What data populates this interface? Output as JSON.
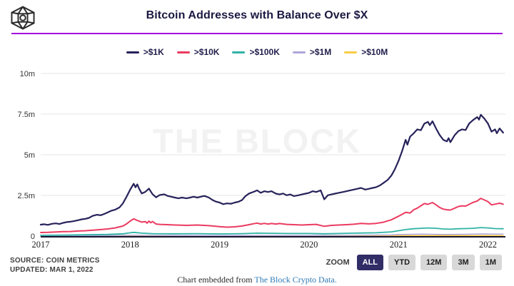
{
  "header": {
    "title": "Bitcoin Addresses with Balance Over $X",
    "logo_icon": "the-block-cube-logo",
    "divider_color": "#A303DB"
  },
  "watermark": "THE BLOCK",
  "legend": {
    "items": [
      {
        "label": ">$1K",
        "color": "#26225A"
      },
      {
        "label": ">$10K",
        "color": "#EB3B60"
      },
      {
        "label": ">$100K",
        "color": "#2FB3A6"
      },
      {
        "label": ">$1M",
        "color": "#B0A6DC"
      },
      {
        "label": ">$10M",
        "color": "#F9CC45"
      }
    ]
  },
  "source": {
    "line1": "SOURCE: COIN METRICS",
    "line2": "UPDATED: MAR 1, 2022"
  },
  "toolbar": {
    "zoom_label": "ZOOM",
    "buttons": [
      {
        "label": "ALL",
        "active": true
      },
      {
        "label": "YTD",
        "active": false
      },
      {
        "label": "12M",
        "active": false
      },
      {
        "label": "3M",
        "active": false
      },
      {
        "label": "1M",
        "active": false
      }
    ]
  },
  "footer": {
    "prefix": "Chart embedded from ",
    "link_text": "The Block Crypto Data."
  },
  "chart_data": {
    "type": "line",
    "title": "Bitcoin Addresses with Balance Over $X",
    "xlabel": "",
    "ylabel": "",
    "unit": "millions of addresses",
    "grid": "horizontal",
    "legend_position": "top-center",
    "xlim": [
      2017,
      2022.18
    ],
    "ylim": [
      0,
      10.5
    ],
    "x_ticks": [
      "2017",
      "2018",
      "2019",
      "2020",
      "2021",
      "2022"
    ],
    "x_tick_values": [
      2017,
      2018,
      2019,
      2020,
      2021,
      2022
    ],
    "y_ticks": [
      "0",
      "2.5m",
      "5m",
      "7.5m",
      "10m"
    ],
    "y_tick_values": [
      0,
      2.5,
      5,
      7.5,
      10
    ],
    "colors": {
      "grid": "#e6e6e6",
      "axis": "#16142e"
    },
    "series": [
      {
        "name": ">$1K",
        "color": "#26225A",
        "width": 2.2,
        "points": [
          [
            2017.0,
            0.7
          ],
          [
            2017.04,
            0.73
          ],
          [
            2017.08,
            0.69
          ],
          [
            2017.13,
            0.76
          ],
          [
            2017.17,
            0.78
          ],
          [
            2017.21,
            0.74
          ],
          [
            2017.25,
            0.81
          ],
          [
            2017.29,
            0.86
          ],
          [
            2017.33,
            0.88
          ],
          [
            2017.38,
            0.93
          ],
          [
            2017.42,
            0.98
          ],
          [
            2017.46,
            1.03
          ],
          [
            2017.5,
            1.06
          ],
          [
            2017.54,
            1.12
          ],
          [
            2017.58,
            1.24
          ],
          [
            2017.63,
            1.31
          ],
          [
            2017.67,
            1.28
          ],
          [
            2017.71,
            1.36
          ],
          [
            2017.75,
            1.46
          ],
          [
            2017.79,
            1.56
          ],
          [
            2017.83,
            1.62
          ],
          [
            2017.88,
            1.76
          ],
          [
            2017.92,
            2.02
          ],
          [
            2017.96,
            2.42
          ],
          [
            2018.0,
            2.85
          ],
          [
            2018.04,
            3.22
          ],
          [
            2018.06,
            3.0
          ],
          [
            2018.08,
            3.18
          ],
          [
            2018.1,
            2.92
          ],
          [
            2018.13,
            2.62
          ],
          [
            2018.17,
            2.72
          ],
          [
            2018.21,
            2.92
          ],
          [
            2018.23,
            2.75
          ],
          [
            2018.25,
            2.58
          ],
          [
            2018.29,
            2.38
          ],
          [
            2018.33,
            2.52
          ],
          [
            2018.38,
            2.57
          ],
          [
            2018.42,
            2.47
          ],
          [
            2018.46,
            2.42
          ],
          [
            2018.5,
            2.37
          ],
          [
            2018.54,
            2.32
          ],
          [
            2018.58,
            2.37
          ],
          [
            2018.63,
            2.32
          ],
          [
            2018.67,
            2.37
          ],
          [
            2018.71,
            2.42
          ],
          [
            2018.75,
            2.37
          ],
          [
            2018.79,
            2.42
          ],
          [
            2018.83,
            2.47
          ],
          [
            2018.88,
            2.37
          ],
          [
            2018.92,
            2.22
          ],
          [
            2018.96,
            2.12
          ],
          [
            2019.0,
            2.06
          ],
          [
            2019.04,
            1.96
          ],
          [
            2019.08,
            2.01
          ],
          [
            2019.13,
            1.99
          ],
          [
            2019.17,
            2.06
          ],
          [
            2019.21,
            2.11
          ],
          [
            2019.25,
            2.21
          ],
          [
            2019.29,
            2.46
          ],
          [
            2019.33,
            2.62
          ],
          [
            2019.38,
            2.72
          ],
          [
            2019.42,
            2.81
          ],
          [
            2019.46,
            2.66
          ],
          [
            2019.5,
            2.76
          ],
          [
            2019.54,
            2.71
          ],
          [
            2019.58,
            2.76
          ],
          [
            2019.63,
            2.61
          ],
          [
            2019.67,
            2.56
          ],
          [
            2019.71,
            2.62
          ],
          [
            2019.75,
            2.51
          ],
          [
            2019.79,
            2.56
          ],
          [
            2019.83,
            2.46
          ],
          [
            2019.88,
            2.51
          ],
          [
            2019.92,
            2.56
          ],
          [
            2019.96,
            2.61
          ],
          [
            2020.0,
            2.66
          ],
          [
            2020.04,
            2.76
          ],
          [
            2020.08,
            2.71
          ],
          [
            2020.13,
            2.81
          ],
          [
            2020.17,
            2.26
          ],
          [
            2020.21,
            2.51
          ],
          [
            2020.25,
            2.56
          ],
          [
            2020.29,
            2.61
          ],
          [
            2020.33,
            2.66
          ],
          [
            2020.38,
            2.71
          ],
          [
            2020.42,
            2.76
          ],
          [
            2020.46,
            2.81
          ],
          [
            2020.5,
            2.86
          ],
          [
            2020.54,
            2.91
          ],
          [
            2020.58,
            2.96
          ],
          [
            2020.63,
            2.86
          ],
          [
            2020.67,
            2.91
          ],
          [
            2020.71,
            2.96
          ],
          [
            2020.75,
            3.01
          ],
          [
            2020.79,
            3.11
          ],
          [
            2020.83,
            3.26
          ],
          [
            2020.88,
            3.46
          ],
          [
            2020.92,
            3.72
          ],
          [
            2020.96,
            4.12
          ],
          [
            2021.0,
            4.62
          ],
          [
            2021.04,
            5.22
          ],
          [
            2021.08,
            5.92
          ],
          [
            2021.1,
            5.62
          ],
          [
            2021.13,
            6.12
          ],
          [
            2021.17,
            6.32
          ],
          [
            2021.21,
            6.56
          ],
          [
            2021.25,
            6.51
          ],
          [
            2021.29,
            6.92
          ],
          [
            2021.33,
            7.02
          ],
          [
            2021.35,
            6.82
          ],
          [
            2021.38,
            7.06
          ],
          [
            2021.42,
            6.62
          ],
          [
            2021.46,
            6.22
          ],
          [
            2021.5,
            5.92
          ],
          [
            2021.54,
            5.82
          ],
          [
            2021.56,
            6.02
          ],
          [
            2021.58,
            5.77
          ],
          [
            2021.63,
            6.22
          ],
          [
            2021.67,
            6.46
          ],
          [
            2021.71,
            6.56
          ],
          [
            2021.75,
            6.52
          ],
          [
            2021.79,
            6.92
          ],
          [
            2021.83,
            7.12
          ],
          [
            2021.88,
            7.32
          ],
          [
            2021.9,
            7.16
          ],
          [
            2021.92,
            7.46
          ],
          [
            2021.96,
            7.22
          ],
          [
            2022.0,
            6.92
          ],
          [
            2022.04,
            6.42
          ],
          [
            2022.08,
            6.56
          ],
          [
            2022.1,
            6.32
          ],
          [
            2022.13,
            6.62
          ],
          [
            2022.17,
            6.36
          ]
        ]
      },
      {
        "name": ">$10K",
        "color": "#EB3B60",
        "width": 2,
        "points": [
          [
            2017.0,
            0.22
          ],
          [
            2017.08,
            0.23
          ],
          [
            2017.17,
            0.25
          ],
          [
            2017.25,
            0.27
          ],
          [
            2017.33,
            0.28
          ],
          [
            2017.42,
            0.31
          ],
          [
            2017.5,
            0.33
          ],
          [
            2017.58,
            0.36
          ],
          [
            2017.67,
            0.4
          ],
          [
            2017.75,
            0.44
          ],
          [
            2017.83,
            0.5
          ],
          [
            2017.92,
            0.62
          ],
          [
            2017.96,
            0.75
          ],
          [
            2018.0,
            0.92
          ],
          [
            2018.04,
            1.06
          ],
          [
            2018.08,
            0.96
          ],
          [
            2018.13,
            0.86
          ],
          [
            2018.17,
            0.89
          ],
          [
            2018.19,
            0.8
          ],
          [
            2018.21,
            0.92
          ],
          [
            2018.23,
            0.82
          ],
          [
            2018.25,
            0.9
          ],
          [
            2018.29,
            0.74
          ],
          [
            2018.33,
            0.72
          ],
          [
            2018.42,
            0.7
          ],
          [
            2018.5,
            0.68
          ],
          [
            2018.63,
            0.66
          ],
          [
            2018.75,
            0.68
          ],
          [
            2018.88,
            0.64
          ],
          [
            2019.0,
            0.58
          ],
          [
            2019.08,
            0.55
          ],
          [
            2019.17,
            0.57
          ],
          [
            2019.25,
            0.62
          ],
          [
            2019.33,
            0.7
          ],
          [
            2019.38,
            0.76
          ],
          [
            2019.42,
            0.8
          ],
          [
            2019.46,
            0.74
          ],
          [
            2019.5,
            0.78
          ],
          [
            2019.54,
            0.74
          ],
          [
            2019.58,
            0.77
          ],
          [
            2019.63,
            0.74
          ],
          [
            2019.67,
            0.77
          ],
          [
            2019.75,
            0.72
          ],
          [
            2019.83,
            0.7
          ],
          [
            2019.92,
            0.68
          ],
          [
            2020.0,
            0.7
          ],
          [
            2020.08,
            0.72
          ],
          [
            2020.17,
            0.6
          ],
          [
            2020.25,
            0.66
          ],
          [
            2020.33,
            0.68
          ],
          [
            2020.42,
            0.7
          ],
          [
            2020.5,
            0.73
          ],
          [
            2020.58,
            0.78
          ],
          [
            2020.67,
            0.75
          ],
          [
            2020.75,
            0.78
          ],
          [
            2020.83,
            0.85
          ],
          [
            2020.92,
            1.0
          ],
          [
            2021.0,
            1.22
          ],
          [
            2021.08,
            1.46
          ],
          [
            2021.13,
            1.42
          ],
          [
            2021.17,
            1.62
          ],
          [
            2021.21,
            1.72
          ],
          [
            2021.25,
            1.86
          ],
          [
            2021.29,
            2.0
          ],
          [
            2021.33,
            1.95
          ],
          [
            2021.38,
            2.06
          ],
          [
            2021.42,
            1.92
          ],
          [
            2021.46,
            1.76
          ],
          [
            2021.5,
            1.66
          ],
          [
            2021.54,
            1.62
          ],
          [
            2021.58,
            1.6
          ],
          [
            2021.63,
            1.72
          ],
          [
            2021.67,
            1.82
          ],
          [
            2021.71,
            1.86
          ],
          [
            2021.75,
            1.84
          ],
          [
            2021.79,
            1.95
          ],
          [
            2021.83,
            2.06
          ],
          [
            2021.88,
            2.16
          ],
          [
            2021.92,
            2.32
          ],
          [
            2021.96,
            2.22
          ],
          [
            2022.0,
            2.12
          ],
          [
            2022.04,
            1.92
          ],
          [
            2022.08,
            1.96
          ],
          [
            2022.13,
            2.02
          ],
          [
            2022.17,
            1.96
          ]
        ]
      },
      {
        "name": ">$100K",
        "color": "#2FB3A6",
        "width": 1.8,
        "points": [
          [
            2017.0,
            0.05
          ],
          [
            2017.25,
            0.06
          ],
          [
            2017.5,
            0.08
          ],
          [
            2017.75,
            0.1
          ],
          [
            2017.92,
            0.14
          ],
          [
            2018.0,
            0.2
          ],
          [
            2018.04,
            0.23
          ],
          [
            2018.13,
            0.18
          ],
          [
            2018.25,
            0.15
          ],
          [
            2018.5,
            0.14
          ],
          [
            2018.75,
            0.15
          ],
          [
            2019.0,
            0.13
          ],
          [
            2019.25,
            0.15
          ],
          [
            2019.42,
            0.18
          ],
          [
            2019.58,
            0.17
          ],
          [
            2019.75,
            0.16
          ],
          [
            2020.0,
            0.16
          ],
          [
            2020.17,
            0.14
          ],
          [
            2020.33,
            0.16
          ],
          [
            2020.5,
            0.18
          ],
          [
            2020.75,
            0.2
          ],
          [
            2020.92,
            0.26
          ],
          [
            2021.0,
            0.33
          ],
          [
            2021.08,
            0.4
          ],
          [
            2021.17,
            0.45
          ],
          [
            2021.25,
            0.48
          ],
          [
            2021.33,
            0.5
          ],
          [
            2021.42,
            0.48
          ],
          [
            2021.5,
            0.44
          ],
          [
            2021.58,
            0.42
          ],
          [
            2021.67,
            0.45
          ],
          [
            2021.75,
            0.46
          ],
          [
            2021.83,
            0.48
          ],
          [
            2021.92,
            0.52
          ],
          [
            2022.0,
            0.5
          ],
          [
            2022.08,
            0.46
          ],
          [
            2022.17,
            0.45
          ]
        ]
      },
      {
        "name": ">$1M",
        "color": "#B0A6DC",
        "width": 1.5,
        "points": [
          [
            2017.0,
            0.01
          ],
          [
            2017.5,
            0.02
          ],
          [
            2018.0,
            0.05
          ],
          [
            2018.5,
            0.04
          ],
          [
            2019.0,
            0.03
          ],
          [
            2019.5,
            0.04
          ],
          [
            2020.0,
            0.04
          ],
          [
            2020.5,
            0.05
          ],
          [
            2020.92,
            0.07
          ],
          [
            2021.0,
            0.09
          ],
          [
            2021.25,
            0.12
          ],
          [
            2021.5,
            0.1
          ],
          [
            2021.75,
            0.11
          ],
          [
            2021.92,
            0.13
          ],
          [
            2022.17,
            0.12
          ]
        ]
      },
      {
        "name": ">$10M",
        "color": "#F9CC45",
        "width": 1.5,
        "points": [
          [
            2017.0,
            0.005
          ],
          [
            2018.0,
            0.015
          ],
          [
            2019.0,
            0.01
          ],
          [
            2020.0,
            0.012
          ],
          [
            2021.0,
            0.025
          ],
          [
            2021.5,
            0.03
          ],
          [
            2022.17,
            0.03
          ]
        ]
      }
    ]
  }
}
